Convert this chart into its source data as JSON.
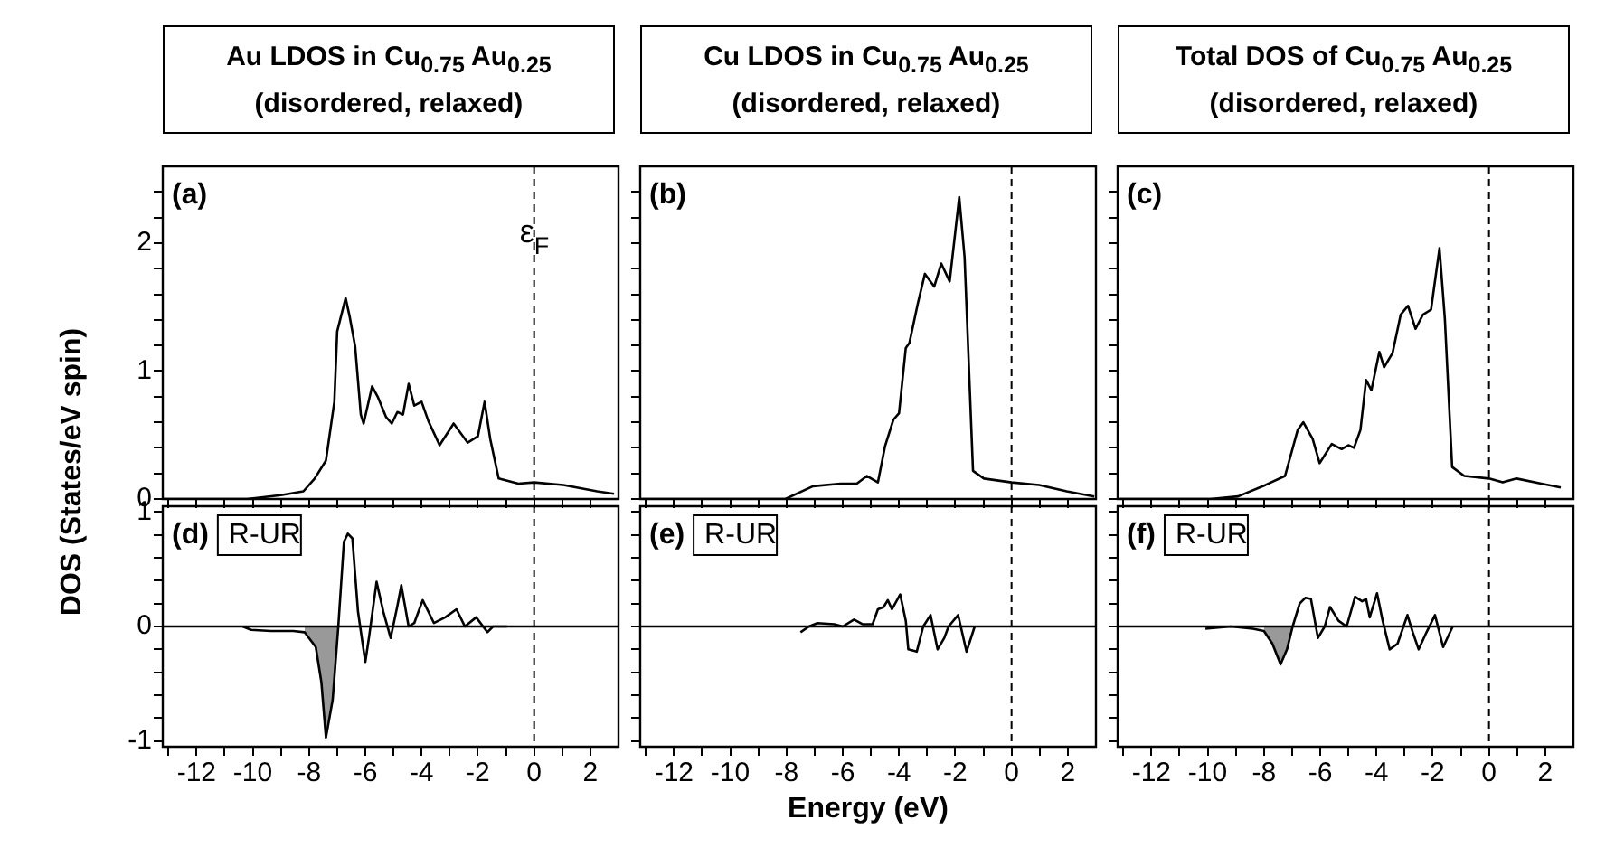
{
  "chart_data": [
    {
      "type": "line",
      "title": "Au LDOS in Cu$_{0.75}$ Au$_{0.25}$",
      "subtitle": "(disordered, relaxed)",
      "ylabel": "DOS (States/eV spin)",
      "tick_labels": "y",
      "series": [
        {
          "color": "#000000",
          "x": [
            -13.2,
            -10.2,
            -9,
            -8.2,
            -7.8,
            -7.4,
            -7.1,
            -7.0,
            -6.7,
            -6.56,
            -6.36,
            -6.16,
            -6.06,
            -5.76,
            -5.56,
            -5.26,
            -5.06,
            -4.86,
            -4.66,
            -4.46,
            -4.26,
            -4.0,
            -3.76,
            -3.36,
            -2.86,
            -2.36,
            -2.0,
            -1.76,
            -1.56,
            -1.26,
            -0.56,
            0,
            1.04,
            2.24,
            2.84
          ],
          "values": [
            0,
            0,
            0.03,
            0.06,
            0.16,
            0.3,
            0.76,
            1.31,
            1.57,
            1.43,
            1.19,
            0.66,
            0.59,
            0.88,
            0.8,
            0.64,
            0.59,
            0.68,
            0.66,
            0.9,
            0.73,
            0.76,
            0.61,
            0.42,
            0.59,
            0.44,
            0.49,
            0.76,
            0.47,
            0.16,
            0.12,
            0.13,
            0.11,
            0.06,
            0.04
          ]
        }
      ],
      "xlim": [
        -13.2,
        3
      ],
      "xticks": [
        {
          "value": -13,
          "label": null
        },
        -12,
        {
          "value": -11,
          "label": null
        },
        -10,
        {
          "value": -9,
          "label": null
        },
        -8,
        {
          "value": -7,
          "label": null
        },
        -6,
        {
          "value": -5,
          "label": null
        },
        -4,
        {
          "value": -3,
          "label": null
        },
        -2,
        {
          "value": -1,
          "label": null
        },
        0,
        {
          "value": 1,
          "label": null
        },
        2
      ],
      "ylim": [
        0,
        2.6
      ],
      "yticks": [
        0,
        {
          "value": 0.2,
          "label": null
        },
        {
          "value": 0.4,
          "label": null
        },
        {
          "value": 0.6,
          "label": null
        },
        {
          "value": 0.8,
          "label": null
        },
        1,
        {
          "value": 1.2,
          "label": null
        },
        {
          "value": 1.4,
          "label": null
        },
        {
          "value": 1.6,
          "label": null
        },
        {
          "value": 1.8,
          "label": null
        },
        2,
        {
          "value": 2.2,
          "label": null
        },
        {
          "value": 2.4,
          "label": null
        }
      ],
      "ref_lines": [
        {
          "axis": "x",
          "value": 0,
          "line_style": "dashed",
          "label": "ε$_{F}$"
        }
      ],
      "annotations": [
        "(a)"
      ]
    },
    {
      "type": "line",
      "title": "Cu LDOS in Cu$_{0.75}$ Au$_{0.25}$",
      "subtitle": "(disordered, relaxed)",
      "tick_labels": false,
      "series": [
        {
          "color": "#000000",
          "x": [
            -13.2,
            -8.04,
            -7.06,
            -6.08,
            -5.5,
            -5.14,
            -4.75,
            -4.5,
            -4.2,
            -4.0,
            -3.76,
            -3.63,
            -3.33,
            -3.08,
            -2.75,
            -2.5,
            -2.2,
            -1.86,
            -1.67,
            -1.37,
            -0.98,
            0,
            0.98,
            1.96,
            2.94
          ],
          "values": [
            0,
            0,
            0.1,
            0.12,
            0.12,
            0.18,
            0.13,
            0.41,
            0.62,
            0.67,
            1.18,
            1.22,
            1.53,
            1.76,
            1.66,
            1.84,
            1.7,
            2.36,
            1.89,
            0.22,
            0.16,
            0.13,
            0.11,
            0.06,
            0.02
          ]
        }
      ],
      "xlim": [
        -13.2,
        3
      ],
      "xticks": [
        {
          "value": -13,
          "label": null
        },
        -12,
        {
          "value": -11,
          "label": null
        },
        -10,
        {
          "value": -9,
          "label": null
        },
        -8,
        {
          "value": -7,
          "label": null
        },
        -6,
        {
          "value": -5,
          "label": null
        },
        -4,
        {
          "value": -3,
          "label": null
        },
        -2,
        {
          "value": -1,
          "label": null
        },
        0,
        {
          "value": 1,
          "label": null
        },
        2
      ],
      "ylim": [
        0,
        2.6
      ],
      "yticks": [
        0,
        {
          "value": 0.2,
          "label": null
        },
        {
          "value": 0.4,
          "label": null
        },
        {
          "value": 0.6,
          "label": null
        },
        {
          "value": 0.8,
          "label": null
        },
        1,
        {
          "value": 1.2,
          "label": null
        },
        {
          "value": 1.4,
          "label": null
        },
        {
          "value": 1.6,
          "label": null
        },
        {
          "value": 1.8,
          "label": null
        },
        2,
        {
          "value": 2.2,
          "label": null
        },
        {
          "value": 2.4,
          "label": null
        }
      ],
      "ref_lines": [
        {
          "axis": "x",
          "value": 0,
          "line_style": "dashed"
        }
      ],
      "annotations": [
        "(b)"
      ]
    },
    {
      "type": "line",
      "title": "Total DOS of Cu$_{0.75}$ Au$_{0.25}$",
      "subtitle": "(disordered, relaxed)",
      "tick_labels": false,
      "series": [
        {
          "color": "#000000",
          "x": [
            -13.2,
            -9.9,
            -8.92,
            -7.94,
            -7.25,
            -6.8,
            -6.6,
            -6.27,
            -6.02,
            -5.59,
            -5.24,
            -5.0,
            -4.8,
            -4.57,
            -4.37,
            -4.18,
            -3.9,
            -3.73,
            -3.43,
            -3.14,
            -2.88,
            -2.61,
            -2.35,
            -2.06,
            -1.76,
            -1.57,
            -1.31,
            -0.88,
            0,
            0.49,
            0.98,
            1.86,
            2.55
          ],
          "values": [
            0,
            0,
            0.02,
            0.11,
            0.18,
            0.54,
            0.6,
            0.47,
            0.28,
            0.43,
            0.39,
            0.42,
            0.4,
            0.54,
            0.93,
            0.85,
            1.15,
            1.03,
            1.14,
            1.44,
            1.51,
            1.33,
            1.44,
            1.48,
            1.96,
            1.41,
            0.25,
            0.18,
            0.16,
            0.13,
            0.16,
            0.12,
            0.09
          ]
        }
      ],
      "xlim": [
        -13.2,
        3
      ],
      "xticks": [
        {
          "value": -13,
          "label": null
        },
        -12,
        {
          "value": -11,
          "label": null
        },
        -10,
        {
          "value": -9,
          "label": null
        },
        -8,
        {
          "value": -7,
          "label": null
        },
        -6,
        {
          "value": -5,
          "label": null
        },
        -4,
        {
          "value": -3,
          "label": null
        },
        -2,
        {
          "value": -1,
          "label": null
        },
        0,
        {
          "value": 1,
          "label": null
        },
        2
      ],
      "ylim": [
        0,
        2.6
      ],
      "yticks": [
        0,
        {
          "value": 0.2,
          "label": null
        },
        {
          "value": 0.4,
          "label": null
        },
        {
          "value": 0.6,
          "label": null
        },
        {
          "value": 0.8,
          "label": null
        },
        1,
        {
          "value": 1.2,
          "label": null
        },
        {
          "value": 1.4,
          "label": null
        },
        {
          "value": 1.6,
          "label": null
        },
        {
          "value": 1.8,
          "label": null
        },
        2,
        {
          "value": 2.2,
          "label": null
        },
        {
          "value": 2.4,
          "label": null
        }
      ],
      "ref_lines": [
        {
          "axis": "x",
          "value": 0,
          "line_style": "dashed"
        }
      ],
      "annotations": [
        "(c)"
      ]
    },
    {
      "type": "line",
      "tick_labels": "xy",
      "series": [
        {
          "color": "#000000",
          "x": [
            -10.36,
            -10.06,
            -9.36,
            -8.56,
            -8.16,
            -7.76,
            -7.56,
            -7.4,
            -7.16,
            -6.96,
            -6.76,
            -6.62,
            -6.46,
            -6.26,
            -6.0,
            -5.86,
            -5.6,
            -5.36,
            -5.1,
            -4.86,
            -4.72,
            -4.46,
            -4.26,
            -3.96,
            -3.56,
            -3.16,
            -2.76,
            -2.46,
            -2.06,
            -1.66,
            -1.46,
            -0.96
          ],
          "values": [
            0,
            -0.03,
            -0.04,
            -0.04,
            -0.05,
            -0.18,
            -0.49,
            -0.97,
            -0.64,
            0,
            0.74,
            0.81,
            0.77,
            0.13,
            -0.31,
            -0.08,
            0.39,
            0.13,
            -0.1,
            0.18,
            0.36,
            0,
            0.03,
            0.23,
            0.03,
            0.08,
            0.15,
            0,
            0.08,
            -0.05,
            0,
            0
          ]
        },
        {
          "type": "area",
          "color": "#999999",
          "x": [
            -8.16,
            -7.76,
            -7.56,
            -7.4,
            -7.16,
            -6.96
          ],
          "values": [
            -0.05,
            -0.18,
            -0.49,
            -0.97,
            -0.64,
            0
          ]
        }
      ],
      "xlim": [
        -13.2,
        3
      ],
      "xticks": [
        {
          "value": -13,
          "label": null
        },
        -12,
        {
          "value": -11,
          "label": null
        },
        -10,
        {
          "value": -9,
          "label": null
        },
        -8,
        {
          "value": -7,
          "label": null
        },
        -6,
        {
          "value": -5,
          "label": null
        },
        -4,
        {
          "value": -3,
          "label": null
        },
        -2,
        {
          "value": -1,
          "label": null
        },
        0,
        {
          "value": 1,
          "label": null
        },
        2
      ],
      "ylim": [
        -1.05,
        1.05
      ],
      "yticks": [
        -1,
        {
          "value": -0.8,
          "label": null
        },
        {
          "value": -0.6,
          "label": null
        },
        {
          "value": -0.4,
          "label": null
        },
        {
          "value": -0.2,
          "label": null
        },
        0,
        {
          "value": 0.2,
          "label": null
        },
        {
          "value": 0.4,
          "label": null
        },
        {
          "value": 0.6,
          "label": null
        },
        {
          "value": 0.8,
          "label": null
        },
        1
      ],
      "ref_lines": [
        {
          "axis": "x",
          "value": 0,
          "line_style": "dashed"
        },
        {
          "axis": "y",
          "value": 0,
          "line_style": "solid"
        }
      ],
      "annotations": [
        "(d)",
        "R-UR"
      ]
    },
    {
      "type": "line",
      "tick_labels": "x",
      "xlabel": "Energy (eV)",
      "series": [
        {
          "color": "#000000",
          "x": [
            -7.5,
            -7.2,
            -6.9,
            -6.3,
            -6.0,
            -5.6,
            -5.3,
            -4.94,
            -4.75,
            -4.55,
            -4.4,
            -4.25,
            -3.96,
            -3.76,
            -3.67,
            -3.37,
            -3.14,
            -2.88,
            -2.63,
            -2.39,
            -2.24,
            -1.9,
            -1.6,
            -1.31
          ],
          "values": [
            -0.05,
            0,
            0.03,
            0.02,
            0,
            0.06,
            0.02,
            0.02,
            0.15,
            0.17,
            0.23,
            0.15,
            0.28,
            0.05,
            -0.2,
            -0.22,
            0,
            0.1,
            -0.2,
            -0.1,
            0,
            0.1,
            -0.22,
            0
          ]
        }
      ],
      "xlim": [
        -13.2,
        3
      ],
      "xticks": [
        {
          "value": -13,
          "label": null
        },
        -12,
        {
          "value": -11,
          "label": null
        },
        -10,
        {
          "value": -9,
          "label": null
        },
        -8,
        {
          "value": -7,
          "label": null
        },
        -6,
        {
          "value": -5,
          "label": null
        },
        -4,
        {
          "value": -3,
          "label": null
        },
        -2,
        {
          "value": -1,
          "label": null
        },
        0,
        {
          "value": 1,
          "label": null
        },
        2
      ],
      "ylim": [
        -1.05,
        1.05
      ],
      "yticks": [
        -1,
        {
          "value": -0.8,
          "label": null
        },
        {
          "value": -0.6,
          "label": null
        },
        {
          "value": -0.4,
          "label": null
        },
        {
          "value": -0.2,
          "label": null
        },
        0,
        {
          "value": 0.2,
          "label": null
        },
        {
          "value": 0.4,
          "label": null
        },
        {
          "value": 0.6,
          "label": null
        },
        {
          "value": 0.8,
          "label": null
        },
        1
      ],
      "ref_lines": [
        {
          "axis": "x",
          "value": 0,
          "line_style": "dashed"
        },
        {
          "axis": "y",
          "value": 0,
          "line_style": "solid"
        }
      ],
      "annotations": [
        "(e)",
        "R-UR"
      ]
    },
    {
      "type": "line",
      "tick_labels": "x",
      "series": [
        {
          "color": "#000000",
          "x": [
            -10.08,
            -9.18,
            -8.39,
            -8.0,
            -7.7,
            -7.41,
            -7.18,
            -6.98,
            -6.73,
            -6.53,
            -6.33,
            -6.08,
            -5.84,
            -5.65,
            -5.35,
            -5.06,
            -4.76,
            -4.51,
            -4.37,
            -4.24,
            -3.98,
            -3.78,
            -3.53,
            -3.25,
            -2.9,
            -2.71,
            -2.5,
            -2.22,
            -1.92,
            -1.63,
            -1.29
          ],
          "values": [
            -0.02,
            0,
            -0.02,
            -0.04,
            -0.15,
            -0.33,
            -0.2,
            0,
            0.2,
            0.25,
            0.24,
            -0.1,
            0,
            0.17,
            0.05,
            0,
            0.26,
            0.22,
            0.24,
            0.08,
            0.29,
            0.05,
            -0.2,
            -0.15,
            0.1,
            -0.05,
            -0.2,
            -0.05,
            0.1,
            -0.18,
            0
          ]
        },
        {
          "type": "area",
          "color": "#999999",
          "x": [
            -8.0,
            -7.7,
            -7.41,
            -7.18,
            -6.98
          ],
          "values": [
            -0.04,
            -0.15,
            -0.33,
            -0.2,
            0
          ]
        }
      ],
      "xlim": [
        -13.2,
        3
      ],
      "xticks": [
        {
          "value": -13,
          "label": null
        },
        -12,
        {
          "value": -11,
          "label": null
        },
        -10,
        {
          "value": -9,
          "label": null
        },
        -8,
        {
          "value": -7,
          "label": null
        },
        -6,
        {
          "value": -5,
          "label": null
        },
        -4,
        {
          "value": -3,
          "label": null
        },
        -2,
        {
          "value": -1,
          "label": null
        },
        0,
        {
          "value": 1,
          "label": null
        },
        2
      ],
      "ylim": [
        -1.05,
        1.05
      ],
      "yticks": [
        -1,
        {
          "value": -0.8,
          "label": null
        },
        {
          "value": -0.6,
          "label": null
        },
        {
          "value": -0.4,
          "label": null
        },
        {
          "value": -0.2,
          "label": null
        },
        0,
        {
          "value": 0.2,
          "label": null
        },
        {
          "value": 0.4,
          "label": null
        },
        {
          "value": 0.6,
          "label": null
        },
        {
          "value": 0.8,
          "label": null
        },
        1
      ],
      "ref_lines": [
        {
          "axis": "x",
          "value": 0,
          "line_style": "dashed"
        },
        {
          "axis": "y",
          "value": 0,
          "line_style": "solid"
        }
      ],
      "annotations": [
        "(f)",
        "R-UR"
      ]
    }
  ]
}
